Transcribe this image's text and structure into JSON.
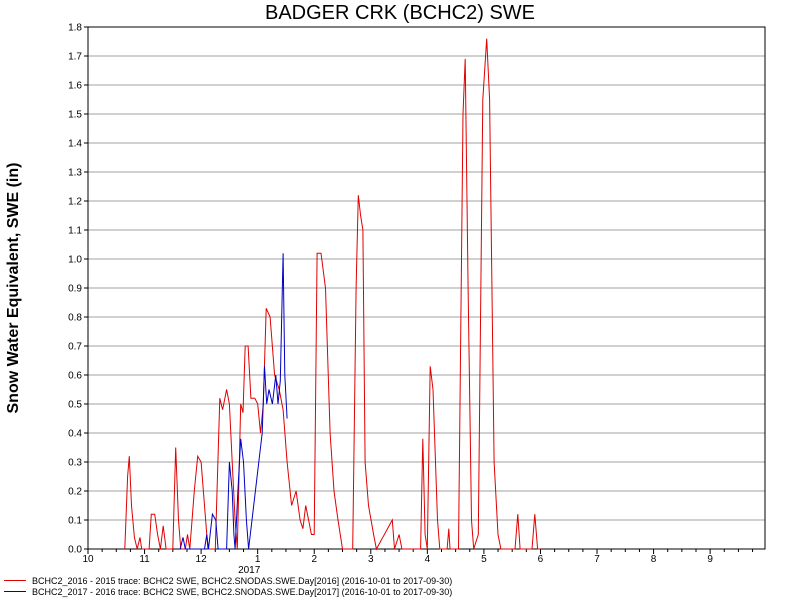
{
  "chart_data": {
    "type": "line",
    "title": "BADGER CRK (BCHC2) SWE",
    "ylabel": "Snow Water Equivalent, SWE (in)",
    "xlabel": "",
    "ylim": [
      0,
      1.8
    ],
    "xlim": [
      10,
      10.95
    ],
    "grid": true,
    "legend_position": "bottom-left",
    "y_ticks": [
      "0.0",
      "0.1",
      "0.2",
      "0.3",
      "0.4",
      "0.5",
      "0.6",
      "0.7",
      "0.8",
      "0.9",
      "1.0",
      "1.1",
      "1.2",
      "1.3",
      "1.4",
      "1.5",
      "1.6",
      "1.7",
      "1.8"
    ],
    "x_ticks": [
      {
        "value": 10,
        "label": "10"
      },
      {
        "value": 11,
        "label": "11"
      },
      {
        "value": 12,
        "label": "12"
      },
      {
        "value": 13,
        "label": "1"
      },
      {
        "value": 14,
        "label": "2"
      },
      {
        "value": 15,
        "label": "3"
      },
      {
        "value": 16,
        "label": "4"
      },
      {
        "value": 17,
        "label": "5"
      },
      {
        "value": 18,
        "label": "6"
      },
      {
        "value": 19,
        "label": "7"
      },
      {
        "value": 20,
        "label": "8"
      },
      {
        "value": 21,
        "label": "9"
      }
    ],
    "year_label": {
      "value": 12.85,
      "label": "2017"
    },
    "series": [
      {
        "name": "BCHC2_2016 - 2015 trace: BCHC2 SWE, BCHC2.SNODAS.SWE.Day[2016] (2016-10-01 to 2017-09-30)",
        "color": "#e00000",
        "points": [
          [
            10.65,
            0
          ],
          [
            10.7,
            0.25
          ],
          [
            10.73,
            0.32
          ],
          [
            10.77,
            0.15
          ],
          [
            10.82,
            0.04
          ],
          [
            10.87,
            0
          ],
          [
            10.92,
            0.04
          ],
          [
            10.95,
            0
          ],
          [
            11.08,
            0
          ],
          [
            11.12,
            0.12
          ],
          [
            11.18,
            0.12
          ],
          [
            11.23,
            0.05
          ],
          [
            11.28,
            0
          ],
          [
            11.33,
            0.08
          ],
          [
            11.38,
            0
          ],
          [
            11.5,
            0
          ],
          [
            11.55,
            0.35
          ],
          [
            11.6,
            0.1
          ],
          [
            11.64,
            0
          ],
          [
            11.72,
            0
          ],
          [
            11.76,
            0.05
          ],
          [
            11.8,
            0
          ],
          [
            11.88,
            0.2
          ],
          [
            11.94,
            0.32
          ],
          [
            12.0,
            0.3
          ],
          [
            12.06,
            0.15
          ],
          [
            12.12,
            0
          ],
          [
            12.25,
            0
          ],
          [
            12.33,
            0.52
          ],
          [
            12.38,
            0.48
          ],
          [
            12.45,
            0.55
          ],
          [
            12.5,
            0.5
          ],
          [
            12.55,
            0.3
          ],
          [
            12.6,
            0.1
          ],
          [
            12.64,
            0
          ],
          [
            12.7,
            0.5
          ],
          [
            12.74,
            0.47
          ],
          [
            12.78,
            0.7
          ],
          [
            12.83,
            0.7
          ],
          [
            12.88,
            0.52
          ],
          [
            12.95,
            0.52
          ],
          [
            13.0,
            0.5
          ],
          [
            13.05,
            0.4
          ],
          [
            13.1,
            0.5
          ],
          [
            13.15,
            0.83
          ],
          [
            13.22,
            0.8
          ],
          [
            13.3,
            0.6
          ],
          [
            13.38,
            0.55
          ],
          [
            13.45,
            0.48
          ],
          [
            13.52,
            0.3
          ],
          [
            13.6,
            0.15
          ],
          [
            13.68,
            0.2
          ],
          [
            13.75,
            0.1
          ],
          [
            13.8,
            0.07
          ],
          [
            13.85,
            0.15
          ],
          [
            13.9,
            0.1
          ],
          [
            13.95,
            0.05
          ],
          [
            14.0,
            0.05
          ],
          [
            14.05,
            1.02
          ],
          [
            14.12,
            1.02
          ],
          [
            14.2,
            0.9
          ],
          [
            14.28,
            0.4
          ],
          [
            14.35,
            0.2
          ],
          [
            14.42,
            0.1
          ],
          [
            14.5,
            0
          ],
          [
            14.68,
            0
          ],
          [
            14.74,
            0.9
          ],
          [
            14.78,
            1.22
          ],
          [
            14.82,
            1.15
          ],
          [
            14.86,
            1.1
          ],
          [
            14.9,
            0.3
          ],
          [
            14.96,
            0.15
          ],
          [
            15.05,
            0.05
          ],
          [
            15.1,
            0
          ],
          [
            15.38,
            0.1
          ],
          [
            15.42,
            0
          ],
          [
            15.5,
            0.05
          ],
          [
            15.55,
            0
          ],
          [
            15.88,
            0
          ],
          [
            15.92,
            0.38
          ],
          [
            15.96,
            0.05
          ],
          [
            16.0,
            0
          ],
          [
            16.05,
            0.63
          ],
          [
            16.1,
            0.55
          ],
          [
            16.18,
            0.1
          ],
          [
            16.22,
            0
          ],
          [
            16.35,
            0
          ],
          [
            16.38,
            0.07
          ],
          [
            16.4,
            0
          ],
          [
            16.55,
            0
          ],
          [
            16.63,
            1.5
          ],
          [
            16.67,
            1.69
          ],
          [
            16.72,
            0.9
          ],
          [
            16.78,
            0.1
          ],
          [
            16.82,
            0
          ],
          [
            16.9,
            0.05
          ],
          [
            16.98,
            1.55
          ],
          [
            17.05,
            1.76
          ],
          [
            17.1,
            1.55
          ],
          [
            17.18,
            0.3
          ],
          [
            17.25,
            0.05
          ],
          [
            17.3,
            0
          ],
          [
            17.42,
            0
          ],
          [
            17.55,
            0
          ],
          [
            17.6,
            0.12
          ],
          [
            17.64,
            0
          ],
          [
            17.85,
            0
          ],
          [
            17.9,
            0.12
          ],
          [
            17.95,
            0
          ],
          [
            18.0,
            0
          ]
        ]
      },
      {
        "name": "BCHC2_2017 - 2016 trace: BCHC2 SWE, BCHC2.SNODAS.SWE.Day[2017] (2016-10-01 to 2017-09-30)",
        "color": "#0000c0",
        "points": [
          [
            11.63,
            0
          ],
          [
            11.68,
            0.04
          ],
          [
            11.72,
            0
          ],
          [
            12.06,
            0
          ],
          [
            12.1,
            0.05
          ],
          [
            12.13,
            0
          ],
          [
            12.2,
            0.12
          ],
          [
            12.26,
            0.1
          ],
          [
            12.3,
            0
          ],
          [
            12.45,
            0
          ],
          [
            12.5,
            0.3
          ],
          [
            12.55,
            0.2
          ],
          [
            12.58,
            0.05
          ],
          [
            12.6,
            0
          ],
          [
            12.65,
            0.2
          ],
          [
            12.7,
            0.38
          ],
          [
            12.75,
            0.3
          ],
          [
            12.8,
            0.1
          ],
          [
            12.84,
            0
          ],
          [
            13.08,
            0.4
          ],
          [
            13.12,
            0.63
          ],
          [
            13.16,
            0.5
          ],
          [
            13.2,
            0.55
          ],
          [
            13.26,
            0.5
          ],
          [
            13.32,
            0.6
          ],
          [
            13.36,
            0.5
          ],
          [
            13.4,
            0.58
          ],
          [
            13.45,
            1.02
          ],
          [
            13.48,
            0.6
          ],
          [
            13.52,
            0.45
          ]
        ]
      }
    ]
  }
}
